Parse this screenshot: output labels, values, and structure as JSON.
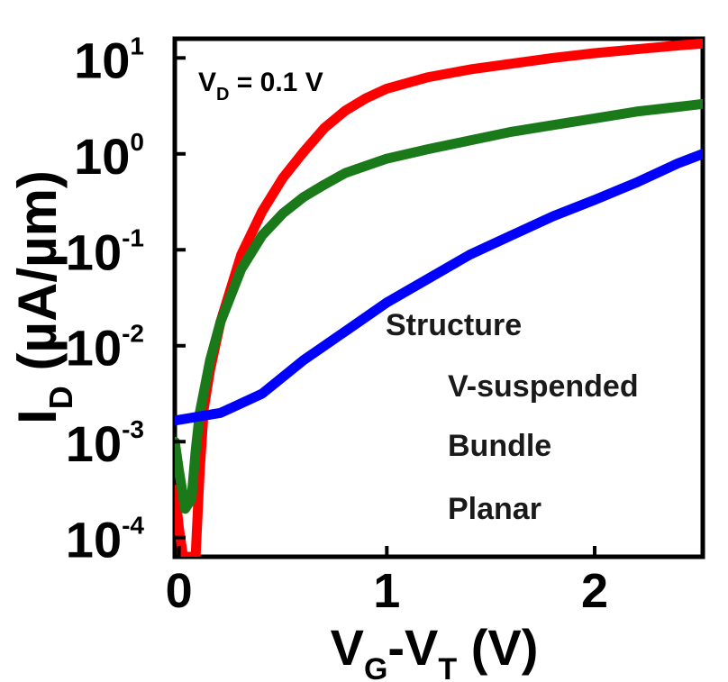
{
  "chart_data": {
    "type": "line",
    "title": "",
    "annotation": {
      "main": "V",
      "sub": "D",
      "rest": " = 0.1 V"
    },
    "xlabel": {
      "parts": [
        {
          "t": "V",
          "sub": "G"
        },
        {
          "t": "-V",
          "sub": "T"
        },
        {
          "t": " (V)",
          "sub": ""
        }
      ]
    },
    "ylabel": {
      "main": "I",
      "sub": "D",
      "rest": " (µA/µm)"
    },
    "xlim": [
      -0.02,
      2.52
    ],
    "ylim_log10": [
      -4.2,
      1.2
    ],
    "yscale": "log",
    "x_ticks": [
      {
        "value": 0,
        "label": "0"
      },
      {
        "value": 1,
        "label": "1"
      },
      {
        "value": 2,
        "label": "2"
      }
    ],
    "y_ticks": [
      {
        "exp": 1,
        "base": "10",
        "sup": "1"
      },
      {
        "exp": 0,
        "base": "10",
        "sup": "0"
      },
      {
        "exp": -1,
        "base": "10",
        "sup": "-1"
      },
      {
        "exp": -2,
        "base": "10",
        "sup": "-2"
      },
      {
        "exp": -3,
        "base": "10",
        "sup": "-3"
      },
      {
        "exp": -4,
        "base": "10",
        "sup": "-4"
      }
    ],
    "legend": {
      "title": "Structure",
      "placement": "lower-right",
      "entries": [
        "V-suspended",
        "Bundle",
        "Planar"
      ]
    },
    "series": [
      {
        "color": "#ff0000",
        "points": [
          [
            -0.02,
            -3.5
          ],
          [
            0.0,
            -3.9
          ],
          [
            0.02,
            -4.2
          ],
          [
            0.05,
            -4.2
          ],
          [
            0.08,
            -4.2
          ],
          [
            0.1,
            -3.3
          ],
          [
            0.12,
            -2.65
          ],
          [
            0.15,
            -2.25
          ],
          [
            0.2,
            -1.75
          ],
          [
            0.3,
            -1.05
          ],
          [
            0.4,
            -0.6
          ],
          [
            0.5,
            -0.25
          ],
          [
            0.6,
            0.02
          ],
          [
            0.7,
            0.27
          ],
          [
            0.8,
            0.45
          ],
          [
            0.9,
            0.58
          ],
          [
            1.0,
            0.68
          ],
          [
            1.2,
            0.8
          ],
          [
            1.4,
            0.88
          ],
          [
            1.6,
            0.94
          ],
          [
            1.8,
            1.0
          ],
          [
            2.0,
            1.05
          ],
          [
            2.2,
            1.09
          ],
          [
            2.4,
            1.13
          ],
          [
            2.52,
            1.15
          ]
        ]
      },
      {
        "color": "#1a7a1a",
        "points": [
          [
            -0.02,
            -3.0
          ],
          [
            0.0,
            -3.3
          ],
          [
            0.03,
            -3.7
          ],
          [
            0.06,
            -3.6
          ],
          [
            0.08,
            -3.1
          ],
          [
            0.1,
            -2.7
          ],
          [
            0.15,
            -2.15
          ],
          [
            0.2,
            -1.75
          ],
          [
            0.3,
            -1.2
          ],
          [
            0.4,
            -0.85
          ],
          [
            0.5,
            -0.62
          ],
          [
            0.6,
            -0.45
          ],
          [
            0.7,
            -0.32
          ],
          [
            0.8,
            -0.2
          ],
          [
            1.0,
            -0.05
          ],
          [
            1.2,
            0.05
          ],
          [
            1.4,
            0.14
          ],
          [
            1.6,
            0.23
          ],
          [
            1.8,
            0.3
          ],
          [
            2.0,
            0.37
          ],
          [
            2.2,
            0.44
          ],
          [
            2.4,
            0.49
          ],
          [
            2.52,
            0.52
          ]
        ]
      },
      {
        "color": "#0000ff",
        "points": [
          [
            -0.02,
            -2.78
          ],
          [
            0.2,
            -2.7
          ],
          [
            0.4,
            -2.5
          ],
          [
            0.6,
            -2.15
          ],
          [
            0.8,
            -1.85
          ],
          [
            1.0,
            -1.55
          ],
          [
            1.2,
            -1.3
          ],
          [
            1.4,
            -1.05
          ],
          [
            1.6,
            -0.85
          ],
          [
            1.8,
            -0.65
          ],
          [
            2.0,
            -0.48
          ],
          [
            2.2,
            -0.3
          ],
          [
            2.4,
            -0.1
          ],
          [
            2.52,
            0.0
          ]
        ]
      }
    ]
  }
}
